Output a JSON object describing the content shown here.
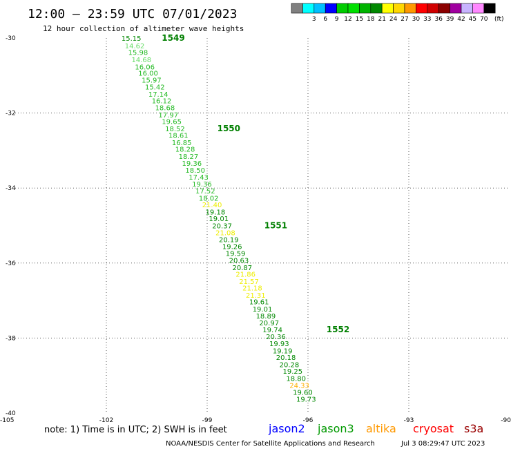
{
  "header": {
    "title": "12:00 – 23:59 UTC 07/01/2023",
    "subtitle": "12 hour collection of altimeter wave heights"
  },
  "scale": {
    "unit": "(ft)",
    "bins": [
      {
        "color": "#808080",
        "label": ""
      },
      {
        "color": "#00ffff",
        "label": "3"
      },
      {
        "color": "#00bfff",
        "label": "6"
      },
      {
        "color": "#0000ff",
        "label": "9"
      },
      {
        "color": "#00cc00",
        "label": "12"
      },
      {
        "color": "#00e000",
        "label": "15"
      },
      {
        "color": "#00b400",
        "label": "18"
      },
      {
        "color": "#008800",
        "label": "21"
      },
      {
        "color": "#ffff00",
        "label": "24"
      },
      {
        "color": "#ffd700",
        "label": "27"
      },
      {
        "color": "#ff9900",
        "label": "30"
      },
      {
        "color": "#ff0000",
        "label": "33"
      },
      {
        "color": "#d00000",
        "label": "36"
      },
      {
        "color": "#8b0000",
        "label": "39"
      },
      {
        "color": "#a000a0",
        "label": "42"
      },
      {
        "color": "#c8b4ff",
        "label": "45"
      },
      {
        "color": "#ff88ff",
        "label": "70"
      },
      {
        "color": "#000000",
        "label": ""
      }
    ]
  },
  "chart_data": {
    "type": "scatter",
    "xlim": [
      -105,
      -90
    ],
    "ylim": [
      -40,
      -30
    ],
    "x_ticks": [
      -105,
      -102,
      -99,
      -96,
      -93,
      -90
    ],
    "y_ticks": [
      -30,
      -32,
      -34,
      -36,
      -38,
      -40
    ],
    "x_tick_labels": [
      "-105",
      "-102",
      "-99",
      "-96",
      "-93",
      "-90"
    ],
    "y_tick_labels": [
      "-30",
      "-32",
      "-34",
      "-36",
      "-38",
      "-40"
    ],
    "grid": true,
    "colors": {
      "high": "#008800",
      "mid": "#22b922",
      "light": "#66dd66",
      "yellow": "#eeee00",
      "orange": "#ffb000"
    },
    "points": [
      {
        "lon": -101.55,
        "lat": -30.0,
        "value": "15.15",
        "color": "high"
      },
      {
        "lon": -101.45,
        "lat": -30.2,
        "value": "14.62",
        "color": "light"
      },
      {
        "lon": -101.35,
        "lat": -30.38,
        "value": "15.98",
        "color": "mid"
      },
      {
        "lon": -101.25,
        "lat": -30.57,
        "value": "14.68",
        "color": "light"
      },
      {
        "lon": -101.15,
        "lat": -30.76,
        "value": "16.06",
        "color": "mid"
      },
      {
        "lon": -101.05,
        "lat": -30.93,
        "value": "16.00",
        "color": "mid"
      },
      {
        "lon": -100.95,
        "lat": -31.11,
        "value": "15.97",
        "color": "mid"
      },
      {
        "lon": -100.85,
        "lat": -31.3,
        "value": "15.42",
        "color": "mid"
      },
      {
        "lon": -100.75,
        "lat": -31.49,
        "value": "17.14",
        "color": "mid"
      },
      {
        "lon": -100.65,
        "lat": -31.67,
        "value": "16.12",
        "color": "mid"
      },
      {
        "lon": -100.55,
        "lat": -31.85,
        "value": "18.68",
        "color": "mid"
      },
      {
        "lon": -100.45,
        "lat": -32.04,
        "value": "17.97",
        "color": "mid"
      },
      {
        "lon": -100.35,
        "lat": -32.22,
        "value": "19.65",
        "color": "mid"
      },
      {
        "lon": -100.25,
        "lat": -32.41,
        "value": "18.52",
        "color": "mid"
      },
      {
        "lon": -100.15,
        "lat": -32.59,
        "value": "18.61",
        "color": "mid"
      },
      {
        "lon": -100.05,
        "lat": -32.78,
        "value": "16.85",
        "color": "mid"
      },
      {
        "lon": -99.95,
        "lat": -32.96,
        "value": "18.28",
        "color": "mid"
      },
      {
        "lon": -99.85,
        "lat": -33.15,
        "value": "18.27",
        "color": "mid"
      },
      {
        "lon": -99.75,
        "lat": -33.33,
        "value": "19.36",
        "color": "mid"
      },
      {
        "lon": -99.65,
        "lat": -33.52,
        "value": "18.50",
        "color": "mid"
      },
      {
        "lon": -99.55,
        "lat": -33.7,
        "value": "17.43",
        "color": "mid"
      },
      {
        "lon": -99.45,
        "lat": -33.89,
        "value": "19.36",
        "color": "mid"
      },
      {
        "lon": -99.35,
        "lat": -34.07,
        "value": "17.52",
        "color": "mid"
      },
      {
        "lon": -99.25,
        "lat": -34.26,
        "value": "18.02",
        "color": "mid"
      },
      {
        "lon": -99.15,
        "lat": -34.44,
        "value": "21.40",
        "color": "yellow"
      },
      {
        "lon": -99.05,
        "lat": -34.63,
        "value": "19.18",
        "color": "high"
      },
      {
        "lon": -98.95,
        "lat": -34.81,
        "value": "19.01",
        "color": "high"
      },
      {
        "lon": -98.85,
        "lat": -35.0,
        "value": "20.37",
        "color": "high"
      },
      {
        "lon": -98.75,
        "lat": -35.18,
        "value": "21.08",
        "color": "yellow"
      },
      {
        "lon": -98.65,
        "lat": -35.37,
        "value": "20.19",
        "color": "high"
      },
      {
        "lon": -98.55,
        "lat": -35.55,
        "value": "19.26",
        "color": "high"
      },
      {
        "lon": -98.45,
        "lat": -35.74,
        "value": "19.59",
        "color": "high"
      },
      {
        "lon": -98.35,
        "lat": -35.92,
        "value": "20.63",
        "color": "high"
      },
      {
        "lon": -98.25,
        "lat": -36.11,
        "value": "20.87",
        "color": "high"
      },
      {
        "lon": -98.15,
        "lat": -36.29,
        "value": "21.86",
        "color": "yellow"
      },
      {
        "lon": -98.05,
        "lat": -36.48,
        "value": "21.57",
        "color": "yellow"
      },
      {
        "lon": -97.95,
        "lat": -36.66,
        "value": "21.18",
        "color": "yellow"
      },
      {
        "lon": -97.85,
        "lat": -36.85,
        "value": "21.31",
        "color": "yellow"
      },
      {
        "lon": -97.75,
        "lat": -37.03,
        "value": "19.61",
        "color": "high"
      },
      {
        "lon": -97.65,
        "lat": -37.22,
        "value": "19.01",
        "color": "high"
      },
      {
        "lon": -97.55,
        "lat": -37.4,
        "value": "18.89",
        "color": "high"
      },
      {
        "lon": -97.45,
        "lat": -37.59,
        "value": "20.97",
        "color": "high"
      },
      {
        "lon": -97.35,
        "lat": -37.77,
        "value": "19.74",
        "color": "high"
      },
      {
        "lon": -97.25,
        "lat": -37.96,
        "value": "20.36",
        "color": "high"
      },
      {
        "lon": -97.15,
        "lat": -38.14,
        "value": "19.93",
        "color": "high"
      },
      {
        "lon": -97.05,
        "lat": -38.33,
        "value": "19.19",
        "color": "high"
      },
      {
        "lon": -96.95,
        "lat": -38.51,
        "value": "20.18",
        "color": "high"
      },
      {
        "lon": -96.85,
        "lat": -38.7,
        "value": "20.28",
        "color": "high"
      },
      {
        "lon": -96.75,
        "lat": -38.88,
        "value": "19.25",
        "color": "high"
      },
      {
        "lon": -96.65,
        "lat": -39.07,
        "value": "18.80",
        "color": "high"
      },
      {
        "lon": -96.55,
        "lat": -39.25,
        "value": "24.33",
        "color": "orange"
      },
      {
        "lon": -96.45,
        "lat": -39.44,
        "value": "19.60",
        "color": "high"
      },
      {
        "lon": -96.35,
        "lat": -39.62,
        "value": "19.73",
        "color": "high"
      }
    ],
    "pass_labels": [
      {
        "lon": -100.35,
        "lat": -30.0,
        "text": "1549"
      },
      {
        "lon": -98.7,
        "lat": -32.41,
        "text": "1550"
      },
      {
        "lon": -97.3,
        "lat": -35.0,
        "text": "1551"
      },
      {
        "lon": -95.45,
        "lat": -37.77,
        "text": "1552"
      }
    ]
  },
  "footer": {
    "note": "note:  1) Time is in UTC;  2) SWH is in feet",
    "satellites": [
      {
        "name": "jason2",
        "color": "#0000ff"
      },
      {
        "name": "jason3",
        "color": "#009900"
      },
      {
        "name": "altika",
        "color": "#ff9900"
      },
      {
        "name": "cryosat",
        "color": "#ff0000"
      },
      {
        "name": "s3a",
        "color": "#990000"
      }
    ],
    "credit": "NOAA/NESDIS Center for Satellite Applications and Research",
    "timestamp": "Jul  3 08:29:47 UTC 2023"
  }
}
